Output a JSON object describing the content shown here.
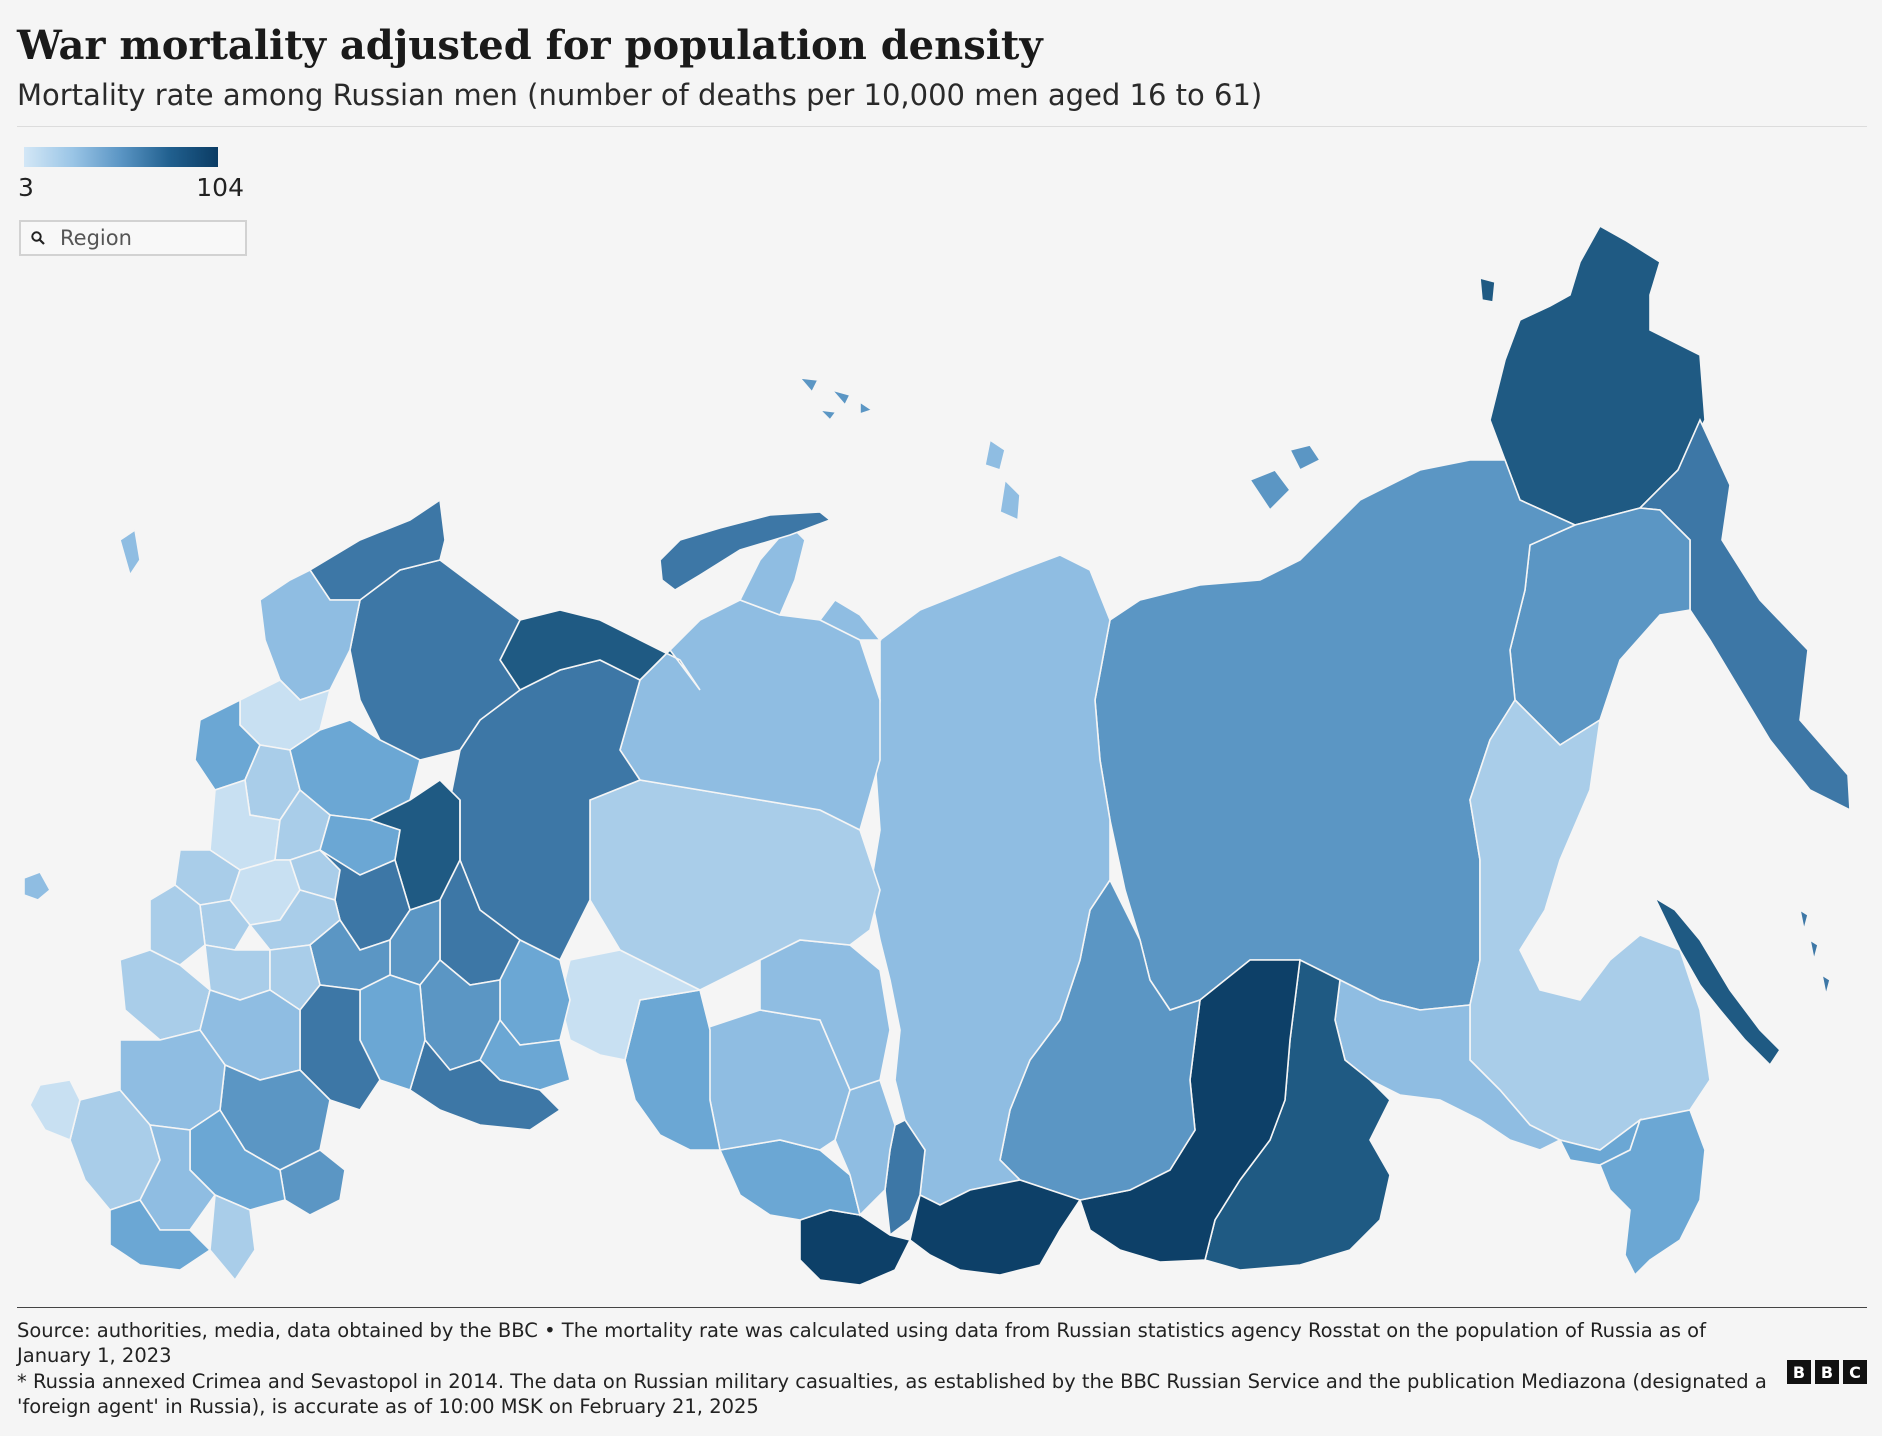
{
  "header": {
    "title": "War mortality adjusted for population density",
    "subtitle": "Mortality rate among Russian men (number of deaths per 10,000 men aged 16 to 61)"
  },
  "legend": {
    "min": "3",
    "max": "104",
    "low_color": "#d3e7f6",
    "high_color": "#0b3c64"
  },
  "search": {
    "placeholder": "Region",
    "icon": "search-icon"
  },
  "footer": {
    "source": "Source: authorities, media, data obtained by the BBC • The mortality rate was calculated using data from Russian statistics agency Rosstat on the population of Russia as of January 1, 2023",
    "note": "* Russia annexed Crimea and Sevastopol in 2014. The data on Russian military casualties, as established by the BBC Russian Service and the publication Mediazona (designated a 'foreign agent' in Russia), is accurate as of 10:00 MSK on February 21, 2025"
  },
  "branding": {
    "letters": [
      "B",
      "B",
      "C"
    ]
  },
  "map_colors": {
    "very_light": "#c8e0f2",
    "light": "#a9cde9",
    "light_mid": "#8fbde2",
    "mid": "#6ba7d4",
    "mid_dark": "#5b96c4",
    "dark": "#3d77a6",
    "darker": "#1f5a83",
    "darkest": "#0d4068"
  }
}
